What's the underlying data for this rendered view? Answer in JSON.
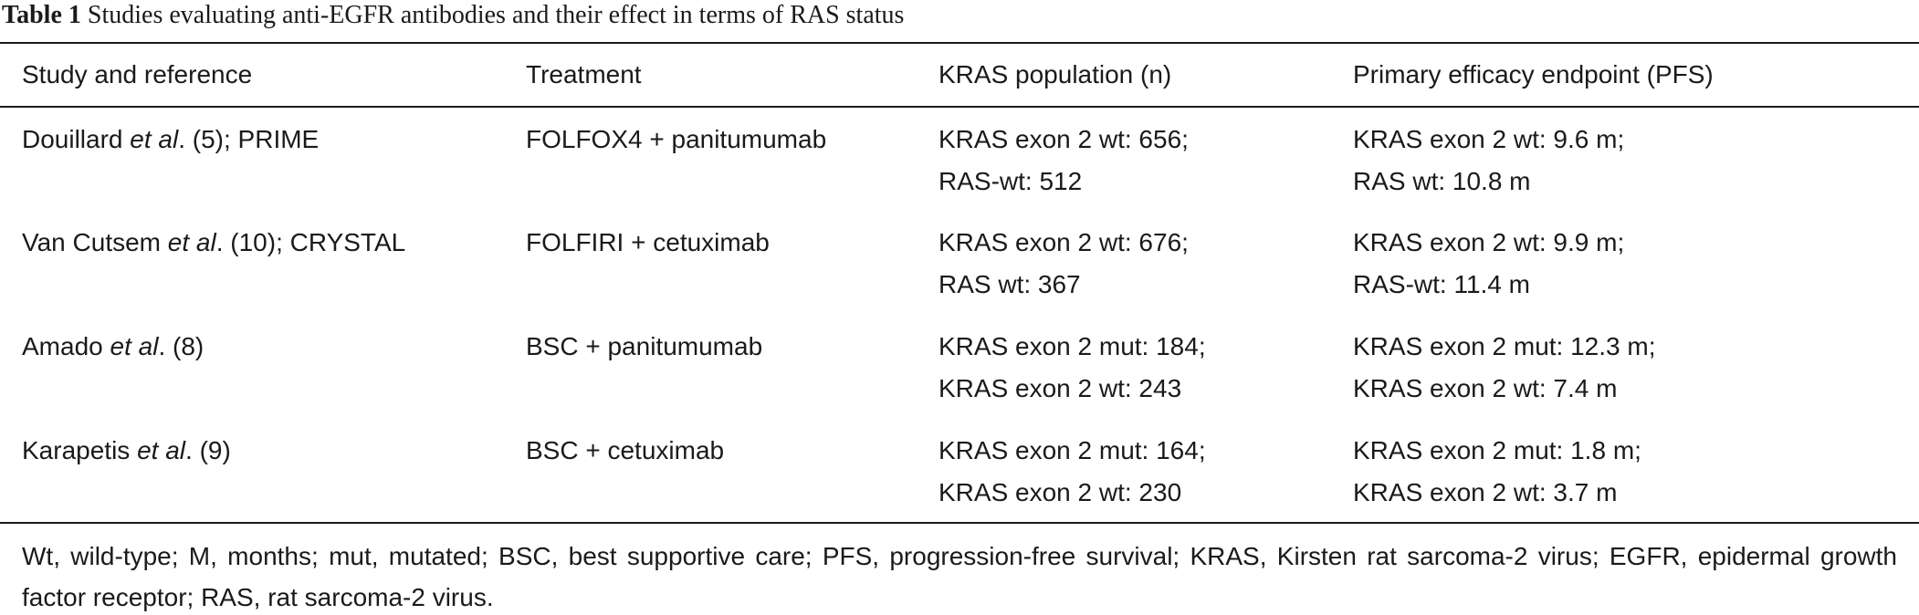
{
  "table": {
    "label": "Table 1",
    "caption": "Studies evaluating anti-EGFR antibodies and their effect in terms of RAS status",
    "header": [
      "Study and reference",
      "Treatment",
      "KRAS population (n)",
      "Primary efficacy endpoint (PFS)"
    ],
    "rows": [
      {
        "study": [
          "Douillard ",
          "et al",
          ". (5); PRIME"
        ],
        "treatment": "FOLFOX4 + panitumumab",
        "population": [
          "KRAS exon 2 wt: 656;",
          "RAS-wt: 512"
        ],
        "endpoint": [
          "KRAS exon 2 wt: 9.6 m;",
          "RAS wt: 10.8 m"
        ]
      },
      {
        "study": [
          "Van Cutsem ",
          "et al",
          ". (10); CRYSTAL"
        ],
        "treatment": "FOLFIRI + cetuximab",
        "population": [
          "KRAS exon 2 wt: 676;",
          "RAS wt: 367"
        ],
        "endpoint": [
          "KRAS exon 2 wt: 9.9 m;",
          "RAS-wt: 11.4 m"
        ]
      },
      {
        "study": [
          "Amado ",
          "et al",
          ". (8)"
        ],
        "treatment": "BSC + panitumumab",
        "population": [
          "KRAS exon 2 mut: 184;",
          "KRAS exon 2 wt: 243"
        ],
        "endpoint": [
          "KRAS exon 2 mut: 12.3 m;",
          "KRAS exon 2 wt: 7.4 m"
        ]
      },
      {
        "study": [
          "Karapetis ",
          "et al",
          ". (9)"
        ],
        "treatment": "BSC + cetuximab",
        "population": [
          "KRAS exon 2 mut: 164;",
          "KRAS exon 2 wt: 230"
        ],
        "endpoint": [
          "KRAS exon 2 mut: 1.8 m;",
          "KRAS exon 2 wt: 3.7 m"
        ]
      }
    ],
    "footnote": "Wt, wild-type; M, months; mut, mutated; BSC, best supportive care; PFS, progression-free survival; KRAS, Kirsten rat sarcoma-2 virus; EGFR, epidermal growth factor receptor; RAS, rat sarcoma-2 virus."
  }
}
